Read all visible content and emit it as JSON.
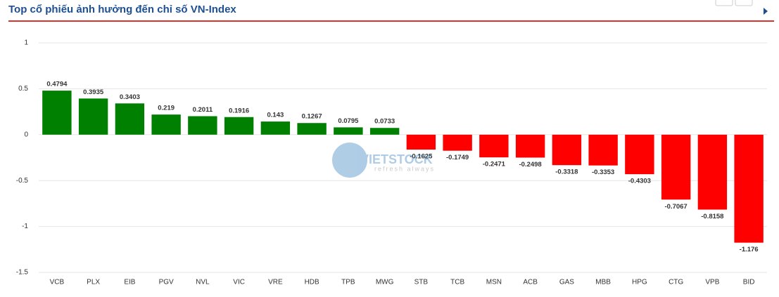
{
  "header": {
    "title": "Top cổ phiếu ảnh hưởng đến chỉ số VN-Index"
  },
  "watermark": {
    "brand": "VIETSTOCK",
    "tagline": "refresh always"
  },
  "chart_data": {
    "type": "bar",
    "categories": [
      "VCB",
      "PLX",
      "EIB",
      "PGV",
      "NVL",
      "VIC",
      "VRE",
      "HDB",
      "TPB",
      "MWG",
      "STB",
      "TCB",
      "MSN",
      "ACB",
      "GAS",
      "MBB",
      "HPG",
      "CTG",
      "VPB",
      "BID"
    ],
    "values": [
      0.4794,
      0.3935,
      0.3403,
      0.219,
      0.2011,
      0.1916,
      0.143,
      0.1267,
      0.0795,
      0.0733,
      -0.1625,
      -0.1749,
      -0.2471,
      -0.2498,
      -0.3318,
      -0.3353,
      -0.4303,
      -0.7067,
      -0.8158,
      -1.176
    ],
    "positive_color": "#008000",
    "negative_color": "#ff0000",
    "ylim": [
      -1.5,
      1
    ],
    "yticks": [
      -1.5,
      -1,
      -0.5,
      0,
      0.5,
      1
    ],
    "grid": true
  }
}
